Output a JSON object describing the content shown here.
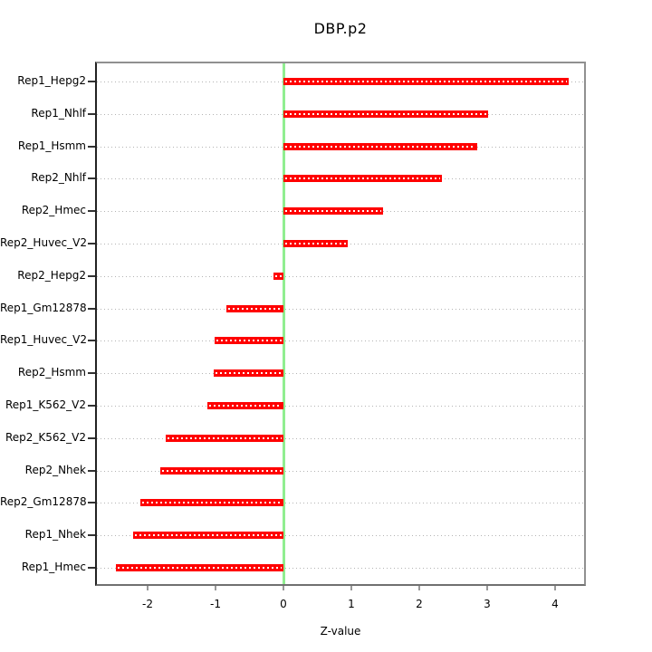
{
  "title": "DBP.p2",
  "xlabel": "Z-value",
  "chart_data": {
    "type": "bar",
    "orientation": "horizontal",
    "title": "DBP.p2",
    "xlabel": "Z-value",
    "ylabel": "",
    "categories": [
      "Rep1_Hepg2",
      "Rep1_Nhlf",
      "Rep1_Hsmm",
      "Rep2_Nhlf",
      "Rep2_Hmec",
      "Rep2_Huvec_V2",
      "Rep2_Hepg2",
      "Rep1_Gm12878",
      "Rep1_Huvec_V2",
      "Rep2_Hsmm",
      "Rep1_K562_V2",
      "Rep2_K562_V2",
      "Rep2_Nhek",
      "Rep2_Gm12878",
      "Rep1_Nhek",
      "Rep1_Hmec"
    ],
    "values": [
      4.2,
      3.02,
      2.86,
      2.33,
      1.47,
      0.95,
      -0.15,
      -0.84,
      -1.01,
      -1.03,
      -1.12,
      -1.73,
      -1.82,
      -2.11,
      -2.21,
      -2.47
    ],
    "x_ticks": [
      -2,
      -1,
      0,
      1,
      2,
      3,
      4
    ],
    "xlim": [
      -2.747,
      4.427
    ],
    "grid": "dotted horizontal line per category",
    "legend": "none",
    "colors": {
      "bar": "#ff0000",
      "bar_centerline": "#ffffff",
      "zero_line": "#90ee90",
      "gridline": "#b4b4b4",
      "plot_border": "#909090",
      "text": "#000000"
    }
  }
}
